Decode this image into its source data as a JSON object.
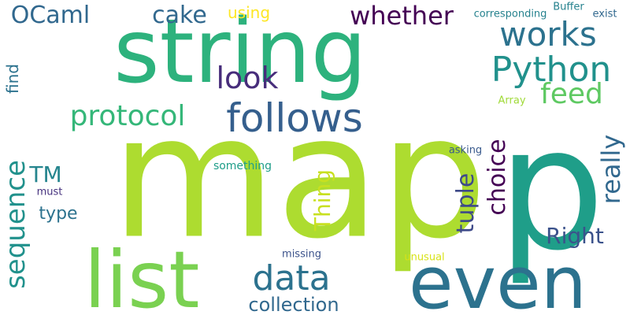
{
  "words": [
    {
      "text": "string",
      "color": "#2db27d"
    },
    {
      "text": "map",
      "color": "#addc30"
    },
    {
      "text": "p",
      "color": "#1f9e89"
    },
    {
      "text": "even",
      "color": "#2c728e"
    },
    {
      "text": "list",
      "color": "#7ad151"
    },
    {
      "text": "follows",
      "color": "#355f8d"
    },
    {
      "text": "Python",
      "color": "#21918c"
    },
    {
      "text": "works",
      "color": "#2c728e"
    },
    {
      "text": "data",
      "color": "#2c728e"
    },
    {
      "text": "protocol",
      "color": "#35b779"
    },
    {
      "text": "whether",
      "color": "#440154"
    },
    {
      "text": "cake",
      "color": "#31688e"
    },
    {
      "text": "OCaml",
      "color": "#31688e"
    },
    {
      "text": "look",
      "color": "#472d7b"
    },
    {
      "text": "feed",
      "color": "#5ec962"
    },
    {
      "text": "sequence",
      "color": "#21918c"
    },
    {
      "text": "TM",
      "color": "#25858e"
    },
    {
      "text": "Thing",
      "color": "#c8e020"
    },
    {
      "text": "tuple",
      "color": "#3e4a89"
    },
    {
      "text": "choice",
      "color": "#440154"
    },
    {
      "text": "really",
      "color": "#31688e"
    },
    {
      "text": "Right",
      "color": "#3b528b"
    },
    {
      "text": "collection",
      "color": "#31688e"
    },
    {
      "text": "type",
      "color": "#2c728e"
    },
    {
      "text": "using",
      "color": "#fde725"
    },
    {
      "text": "find",
      "color": "#2c728e"
    },
    {
      "text": "corresponding",
      "color": "#26828e"
    },
    {
      "text": "Buffer",
      "color": "#26828e"
    },
    {
      "text": "exist",
      "color": "#31688e"
    },
    {
      "text": "Array",
      "color": "#a0da39"
    },
    {
      "text": "asking",
      "color": "#38598c"
    },
    {
      "text": "something",
      "color": "#1f9e89"
    },
    {
      "text": "must",
      "color": "#46327e"
    },
    {
      "text": "missing",
      "color": "#3b528b"
    },
    {
      "text": "unusual",
      "color": "#d8e219"
    }
  ]
}
